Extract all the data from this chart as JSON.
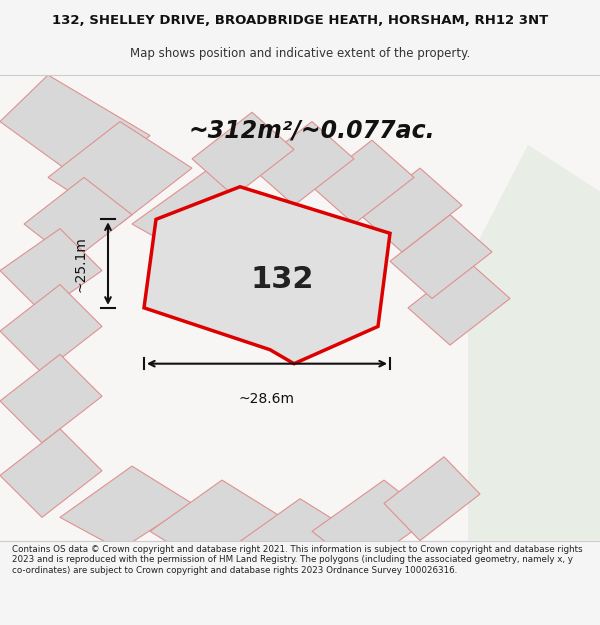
{
  "title_line1": "132, SHELLEY DRIVE, BROADBRIDGE HEATH, HORSHAM, RH12 3NT",
  "title_line2": "Map shows position and indicative extent of the property.",
  "area_label": "~312m²/~0.077ac.",
  "plot_number": "132",
  "dim_vertical": "~25.1m",
  "dim_horizontal": "~28.6m",
  "footer_text": "Contains OS data © Crown copyright and database right 2021. This information is subject to Crown copyright and database rights 2023 and is reproduced with the permission of HM Land Registry. The polygons (including the associated geometry, namely x, y co-ordinates) are subject to Crown copyright and database rights 2023 Ordnance Survey 100026316.",
  "bg_color": "#f5f5f5",
  "map_bg": "#ffffff",
  "plot_fill": "#e8e8e8",
  "plot_border": "#dd0000",
  "neighbor_fill": "#d8d8d8",
  "neighbor_border": "#e8a0a0",
  "road_color": "#f0e8e0",
  "green_area": "#e8ede8",
  "footer_bg": "#ffffff"
}
